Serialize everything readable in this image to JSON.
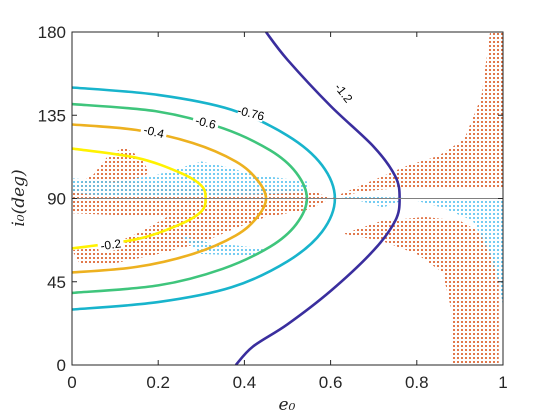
{
  "chart_data": {
    "type": "contour",
    "xlabel": "e₀",
    "ylabel": "i₀(deg)",
    "xlim": [
      0,
      1
    ],
    "ylim": [
      0,
      180
    ],
    "x_ticks": [
      "0",
      "0.2",
      "0.4",
      "0.6",
      "0.8",
      "1"
    ],
    "y_ticks": [
      "0",
      "45",
      "90",
      "135",
      "180"
    ],
    "colors": {
      "orange_dots": "#D95319",
      "cyan_dots": "#4DBEEE",
      "grid_line": "#808080"
    },
    "contours": [
      {
        "label": "-0.2",
        "color": "#FFF200",
        "points": [
          [
            0,
            117
          ],
          [
            0.15,
            112
          ],
          [
            0.25,
            104
          ],
          [
            0.3,
            97
          ],
          [
            0.31,
            90
          ],
          [
            0.3,
            83
          ],
          [
            0.25,
            76
          ],
          [
            0.15,
            68
          ],
          [
            0,
            63
          ]
        ],
        "label_at": [
          0.09,
          65
        ]
      },
      {
        "label": "-0.4",
        "color": "#EDB120",
        "points": [
          [
            0,
            130
          ],
          [
            0.15,
            127
          ],
          [
            0.28,
            120
          ],
          [
            0.38,
            110
          ],
          [
            0.43,
            100
          ],
          [
            0.45,
            90
          ],
          [
            0.43,
            80
          ],
          [
            0.38,
            70
          ],
          [
            0.28,
            60
          ],
          [
            0.15,
            53
          ],
          [
            0,
            50
          ]
        ],
        "label_at": [
          0.19,
          126
        ]
      },
      {
        "label": "-0.6",
        "color": "#3FC57C",
        "points": [
          [
            0,
            141
          ],
          [
            0.2,
            137
          ],
          [
            0.35,
            128
          ],
          [
            0.46,
            116
          ],
          [
            0.52,
            104
          ],
          [
            0.545,
            90
          ],
          [
            0.52,
            76
          ],
          [
            0.46,
            64
          ],
          [
            0.35,
            52
          ],
          [
            0.2,
            43
          ],
          [
            0,
            39
          ]
        ],
        "label_at": [
          0.31,
          131
        ]
      },
      {
        "label": "-0.76",
        "color": "#18B4CC",
        "points": [
          [
            0,
            150
          ],
          [
            0.2,
            146
          ],
          [
            0.37,
            138
          ],
          [
            0.5,
            124
          ],
          [
            0.58,
            108
          ],
          [
            0.61,
            90
          ],
          [
            0.58,
            72
          ],
          [
            0.5,
            56
          ],
          [
            0.37,
            42
          ],
          [
            0.2,
            34
          ],
          [
            0,
            30
          ]
        ],
        "label_at": [
          0.415,
          136
        ]
      },
      {
        "label": "-1.2",
        "color": "#3A2E9E",
        "points": [
          [
            0.45,
            180
          ],
          [
            0.5,
            165
          ],
          [
            0.6,
            140
          ],
          [
            0.7,
            118
          ],
          [
            0.75,
            102
          ],
          [
            0.76,
            90
          ],
          [
            0.75,
            78
          ],
          [
            0.7,
            62
          ],
          [
            0.6,
            40
          ],
          [
            0.5,
            22
          ],
          [
            0.42,
            10
          ],
          [
            0.38,
            0
          ]
        ],
        "label_at": [
          0.63,
          147
        ]
      }
    ]
  }
}
